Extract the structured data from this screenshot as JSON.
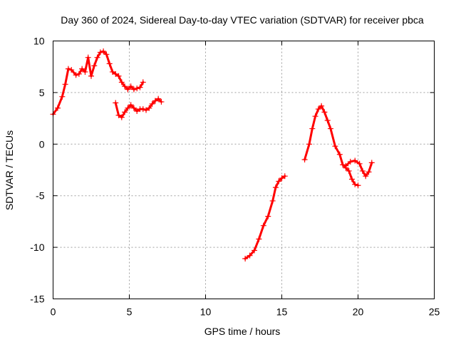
{
  "chart_data": {
    "type": "scatter",
    "title": "Day 360 of 2024, Sidereal Day-to-day VTEC variation (SDTVAR) for receiver pbca",
    "xlabel": "GPS time / hours",
    "ylabel": "SDTVAR / TECUs",
    "xlim": [
      0,
      25
    ],
    "ylim": [
      -15,
      10
    ],
    "xticks": [
      0,
      5,
      10,
      15,
      20,
      25
    ],
    "yticks": [
      -15,
      -10,
      -5,
      0,
      5,
      10
    ],
    "xtick_labels": [
      "0",
      "5",
      "10",
      "15",
      "20",
      "25"
    ],
    "ytick_labels": [
      "-15",
      "-10",
      "-5",
      "0",
      "5",
      "10"
    ],
    "grid": true,
    "marker": "plus",
    "color": "#ff0000",
    "series": [
      {
        "name": "segment-1",
        "x": [
          0.0,
          0.3,
          0.6,
          0.8,
          1.0,
          1.2,
          1.5,
          1.7,
          1.9,
          2.1,
          2.3,
          2.5,
          2.7,
          2.9,
          3.1,
          3.3,
          3.5,
          3.7,
          3.9,
          4.1,
          4.3,
          4.5,
          4.7,
          4.9,
          5.1,
          5.3,
          5.5,
          5.7,
          5.9
        ],
        "values": [
          2.9,
          3.5,
          4.6,
          5.8,
          7.3,
          7.2,
          6.7,
          6.8,
          7.3,
          7.0,
          8.4,
          6.6,
          7.6,
          8.4,
          8.9,
          9.0,
          8.7,
          7.8,
          7.0,
          6.8,
          6.6,
          6.0,
          5.6,
          5.3,
          5.6,
          5.3,
          5.4,
          5.5,
          6.0
        ]
      },
      {
        "name": "segment-2",
        "x": [
          4.1,
          4.3,
          4.5,
          4.7,
          4.9,
          5.1,
          5.3,
          5.5,
          5.7,
          5.9,
          6.1,
          6.3,
          6.5,
          6.7,
          6.9,
          7.1
        ],
        "values": [
          4.0,
          2.8,
          2.6,
          3.1,
          3.5,
          3.8,
          3.5,
          3.2,
          3.4,
          3.4,
          3.3,
          3.5,
          3.9,
          4.2,
          4.4,
          4.1
        ]
      },
      {
        "name": "segment-3",
        "x": [
          12.6,
          12.9,
          13.2,
          13.5,
          13.8,
          14.1,
          14.4,
          14.6,
          14.8,
          15.0,
          15.2
        ],
        "values": [
          -11.1,
          -10.8,
          -10.3,
          -9.2,
          -7.9,
          -7.0,
          -5.5,
          -4.2,
          -3.6,
          -3.3,
          -3.1
        ]
      },
      {
        "name": "segment-4",
        "x": [
          16.5,
          16.8,
          17.0,
          17.2,
          17.4,
          17.6,
          17.8,
          18.0,
          18.2,
          18.5,
          18.8,
          19.0,
          19.2,
          19.4,
          19.6,
          19.8,
          20.0
        ],
        "values": [
          -1.5,
          0.0,
          1.5,
          2.7,
          3.4,
          3.7,
          3.1,
          2.3,
          1.5,
          -0.2,
          -1.0,
          -2.0,
          -2.3,
          -2.6,
          -3.4,
          -3.9,
          -4.0
        ]
      },
      {
        "name": "segment-5",
        "x": [
          19.2,
          19.5,
          19.8,
          20.1,
          20.3,
          20.5,
          20.7,
          20.9
        ],
        "values": [
          -2.1,
          -1.7,
          -1.6,
          -1.9,
          -2.6,
          -3.1,
          -2.7,
          -1.8
        ]
      }
    ]
  }
}
